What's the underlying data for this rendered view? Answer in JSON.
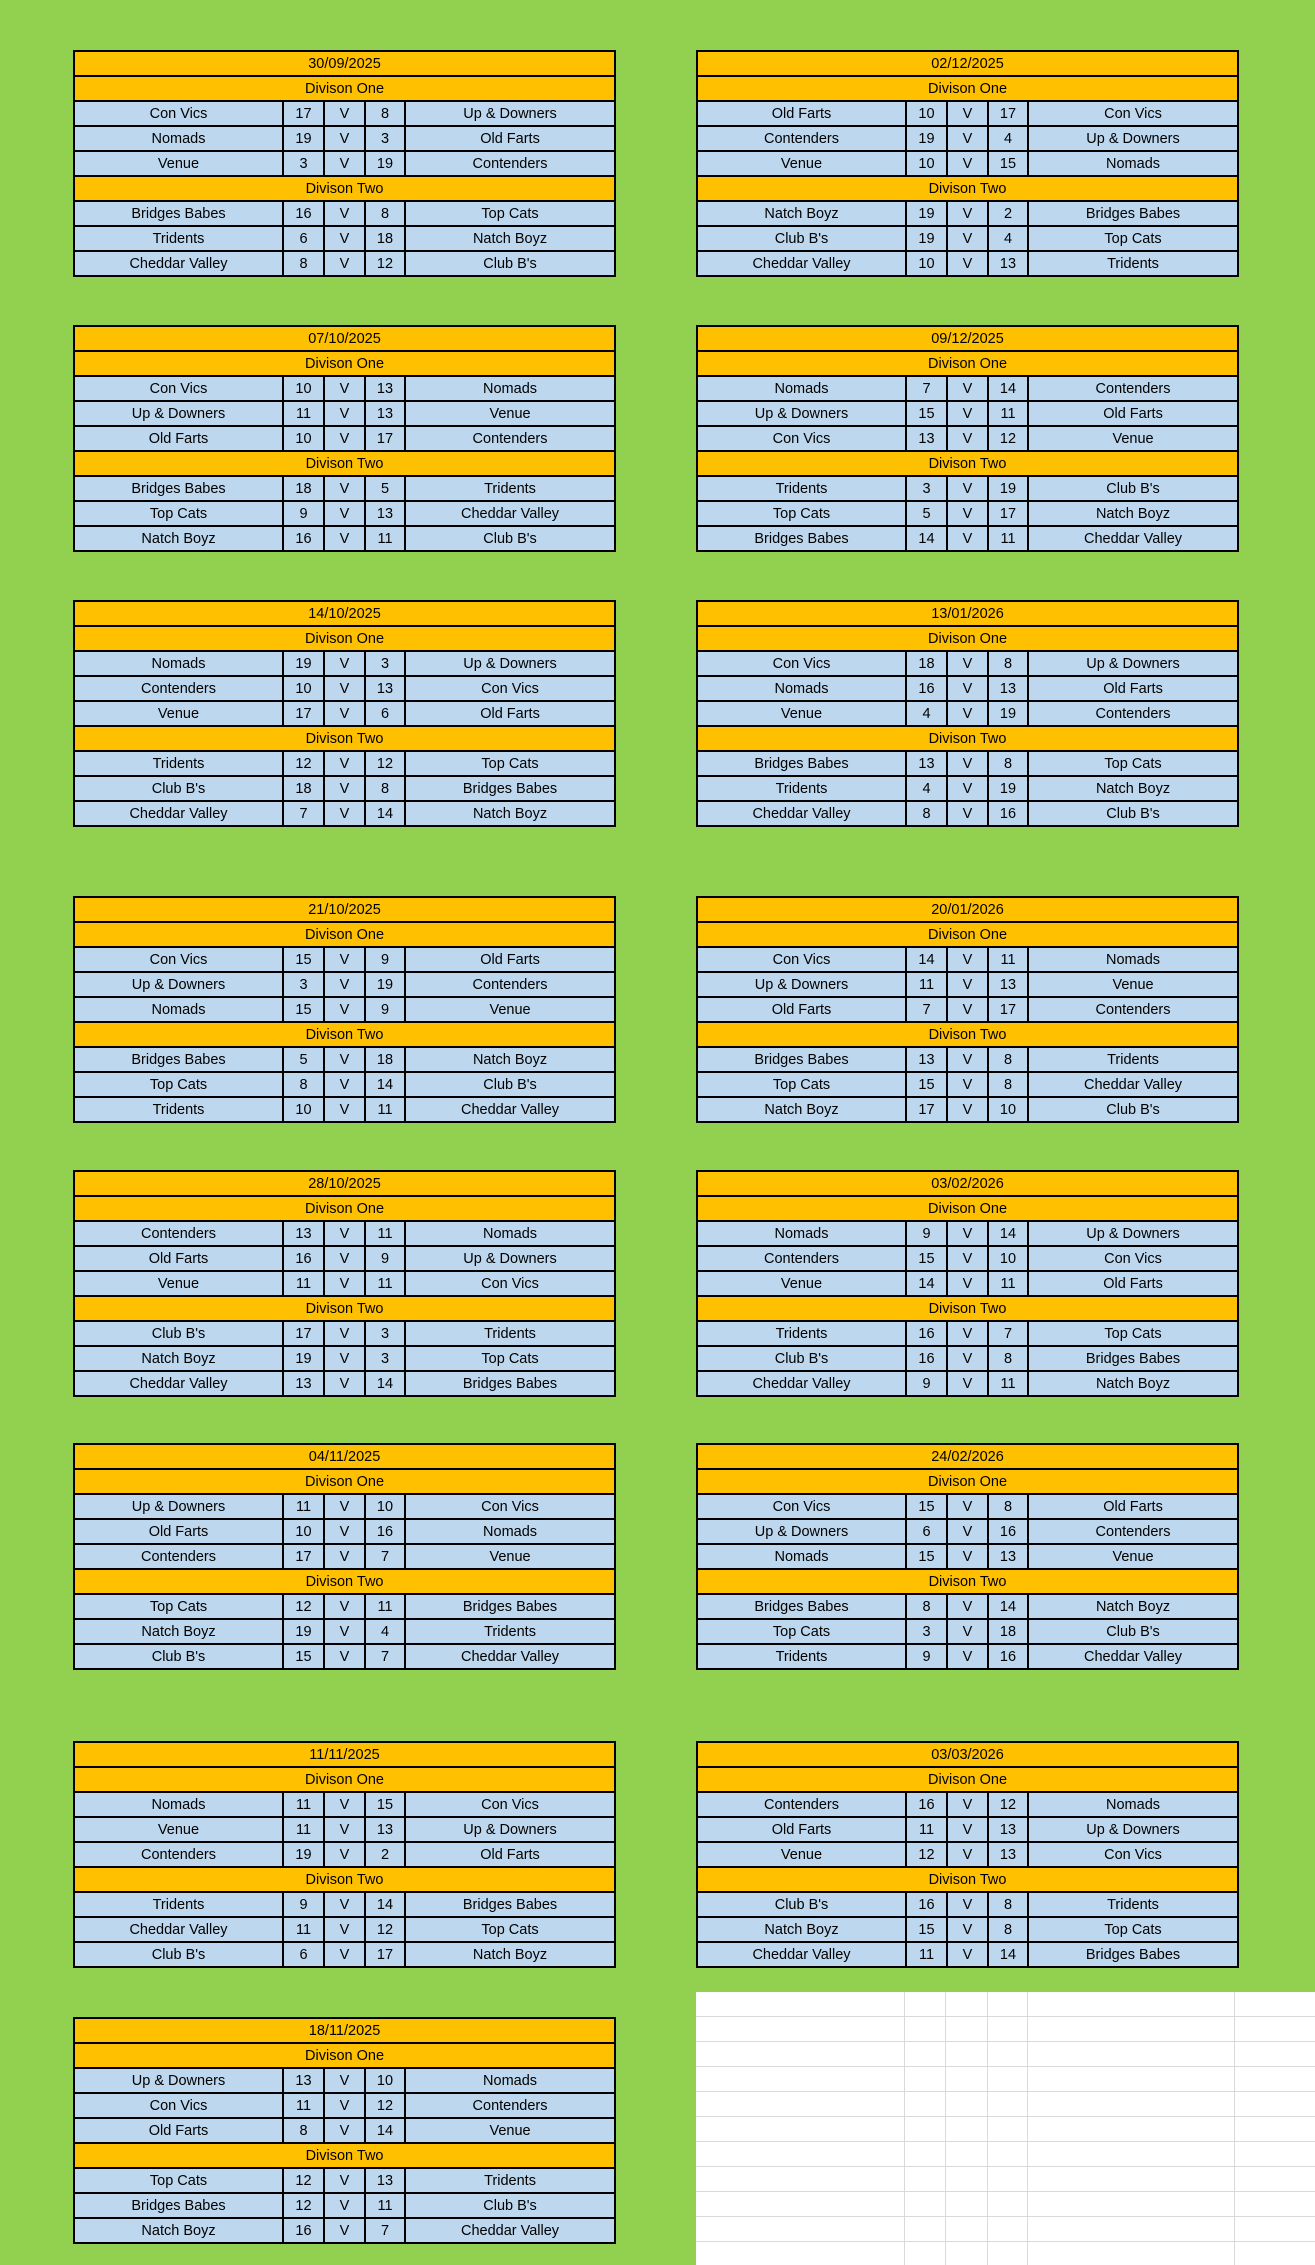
{
  "labels": {
    "division_one": "Divison One",
    "division_two": "Divison Two",
    "vs": "V"
  },
  "colors": {
    "background_green": "#92D050",
    "header_gold": "#FFC000",
    "row_blue": "#BDD7EE",
    "border_black": "#000000",
    "gridline_gray": "#d9d9d9"
  },
  "fixtures": [
    {
      "date": "30/09/2025",
      "division_one": [
        {
          "home": "Con Vics",
          "home_score": "17",
          "away_score": "8",
          "away": "Up & Downers"
        },
        {
          "home": "Nomads",
          "home_score": "19",
          "away_score": "3",
          "away": "Old Farts"
        },
        {
          "home": "Venue",
          "home_score": "3",
          "away_score": "19",
          "away": "Contenders"
        }
      ],
      "division_two": [
        {
          "home": "Bridges Babes",
          "home_score": "16",
          "away_score": "8",
          "away": "Top Cats"
        },
        {
          "home": "Tridents",
          "home_score": "6",
          "away_score": "18",
          "away": "Natch Boyz"
        },
        {
          "home": "Cheddar Valley",
          "home_score": "8",
          "away_score": "12",
          "away": "Club B's"
        }
      ]
    },
    {
      "date": "07/10/2025",
      "division_one": [
        {
          "home": "Con Vics",
          "home_score": "10",
          "away_score": "13",
          "away": "Nomads"
        },
        {
          "home": "Up & Downers",
          "home_score": "11",
          "away_score": "13",
          "away": "Venue"
        },
        {
          "home": "Old Farts",
          "home_score": "10",
          "away_score": "17",
          "away": "Contenders"
        }
      ],
      "division_two": [
        {
          "home": "Bridges Babes",
          "home_score": "18",
          "away_score": "5",
          "away": "Tridents"
        },
        {
          "home": "Top Cats",
          "home_score": "9",
          "away_score": "13",
          "away": "Cheddar Valley"
        },
        {
          "home": "Natch Boyz",
          "home_score": "16",
          "away_score": "11",
          "away": "Club B's"
        }
      ]
    },
    {
      "date": "14/10/2025",
      "division_one": [
        {
          "home": "Nomads",
          "home_score": "19",
          "away_score": "3",
          "away": "Up & Downers"
        },
        {
          "home": "Contenders",
          "home_score": "10",
          "away_score": "13",
          "away": "Con Vics"
        },
        {
          "home": "Venue",
          "home_score": "17",
          "away_score": "6",
          "away": "Old Farts"
        }
      ],
      "division_two": [
        {
          "home": "Tridents",
          "home_score": "12",
          "away_score": "12",
          "away": "Top Cats"
        },
        {
          "home": "Club B's",
          "home_score": "18",
          "away_score": "8",
          "away": "Bridges Babes"
        },
        {
          "home": "Cheddar Valley",
          "home_score": "7",
          "away_score": "14",
          "away": "Natch Boyz"
        }
      ]
    },
    {
      "date": "21/10/2025",
      "division_one": [
        {
          "home": "Con Vics",
          "home_score": "15",
          "away_score": "9",
          "away": "Old Farts"
        },
        {
          "home": "Up & Downers",
          "home_score": "3",
          "away_score": "19",
          "away": "Contenders"
        },
        {
          "home": "Nomads",
          "home_score": "15",
          "away_score": "9",
          "away": "Venue"
        }
      ],
      "division_two": [
        {
          "home": "Bridges Babes",
          "home_score": "5",
          "away_score": "18",
          "away": "Natch Boyz"
        },
        {
          "home": "Top Cats",
          "home_score": "8",
          "away_score": "14",
          "away": "Club B's"
        },
        {
          "home": "Tridents",
          "home_score": "10",
          "away_score": "11",
          "away": "Cheddar Valley"
        }
      ]
    },
    {
      "date": "28/10/2025",
      "division_one": [
        {
          "home": "Contenders",
          "home_score": "13",
          "away_score": "11",
          "away": "Nomads"
        },
        {
          "home": "Old Farts",
          "home_score": "16",
          "away_score": "9",
          "away": "Up & Downers"
        },
        {
          "home": "Venue",
          "home_score": "11",
          "away_score": "11",
          "away": "Con Vics"
        }
      ],
      "division_two": [
        {
          "home": "Club B's",
          "home_score": "17",
          "away_score": "3",
          "away": "Tridents"
        },
        {
          "home": "Natch Boyz",
          "home_score": "19",
          "away_score": "3",
          "away": "Top Cats"
        },
        {
          "home": "Cheddar Valley",
          "home_score": "13",
          "away_score": "14",
          "away": "Bridges Babes"
        }
      ]
    },
    {
      "date": "04/11/2025",
      "division_one": [
        {
          "home": "Up & Downers",
          "home_score": "11",
          "away_score": "10",
          "away": "Con Vics"
        },
        {
          "home": "Old Farts",
          "home_score": "10",
          "away_score": "16",
          "away": "Nomads"
        },
        {
          "home": "Contenders",
          "home_score": "17",
          "away_score": "7",
          "away": "Venue"
        }
      ],
      "division_two": [
        {
          "home": "Top Cats",
          "home_score": "12",
          "away_score": "11",
          "away": "Bridges Babes"
        },
        {
          "home": "Natch Boyz",
          "home_score": "19",
          "away_score": "4",
          "away": "Tridents"
        },
        {
          "home": "Club B's",
          "home_score": "15",
          "away_score": "7",
          "away": "Cheddar Valley"
        }
      ]
    },
    {
      "date": "11/11/2025",
      "division_one": [
        {
          "home": "Nomads",
          "home_score": "11",
          "away_score": "15",
          "away": "Con Vics"
        },
        {
          "home": "Venue",
          "home_score": "11",
          "away_score": "13",
          "away": "Up & Downers"
        },
        {
          "home": "Contenders",
          "home_score": "19",
          "away_score": "2",
          "away": "Old Farts"
        }
      ],
      "division_two": [
        {
          "home": "Tridents",
          "home_score": "9",
          "away_score": "14",
          "away": "Bridges Babes"
        },
        {
          "home": "Cheddar Valley",
          "home_score": "11",
          "away_score": "12",
          "away": "Top Cats"
        },
        {
          "home": "Club B's",
          "home_score": "6",
          "away_score": "17",
          "away": "Natch Boyz"
        }
      ]
    },
    {
      "date": "18/11/2025",
      "division_one": [
        {
          "home": "Up & Downers",
          "home_score": "13",
          "away_score": "10",
          "away": "Nomads"
        },
        {
          "home": "Con Vics",
          "home_score": "11",
          "away_score": "12",
          "away": "Contenders"
        },
        {
          "home": "Old Farts",
          "home_score": "8",
          "away_score": "14",
          "away": "Venue"
        }
      ],
      "division_two": [
        {
          "home": "Top Cats",
          "home_score": "12",
          "away_score": "13",
          "away": "Tridents"
        },
        {
          "home": "Bridges Babes",
          "home_score": "12",
          "away_score": "11",
          "away": "Club B's"
        },
        {
          "home": "Natch Boyz",
          "home_score": "16",
          "away_score": "7",
          "away": "Cheddar Valley"
        }
      ]
    },
    {
      "date": "02/12/2025",
      "division_one": [
        {
          "home": "Old Farts",
          "home_score": "10",
          "away_score": "17",
          "away": "Con Vics"
        },
        {
          "home": "Contenders",
          "home_score": "19",
          "away_score": "4",
          "away": "Up & Downers"
        },
        {
          "home": "Venue",
          "home_score": "10",
          "away_score": "15",
          "away": "Nomads"
        }
      ],
      "division_two": [
        {
          "home": "Natch Boyz",
          "home_score": "19",
          "away_score": "2",
          "away": "Bridges Babes"
        },
        {
          "home": "Club B's",
          "home_score": "19",
          "away_score": "4",
          "away": "Top Cats"
        },
        {
          "home": "Cheddar Valley",
          "home_score": "10",
          "away_score": "13",
          "away": "Tridents"
        }
      ]
    },
    {
      "date": "09/12/2025",
      "division_one": [
        {
          "home": "Nomads",
          "home_score": "7",
          "away_score": "14",
          "away": "Contenders"
        },
        {
          "home": "Up & Downers",
          "home_score": "15",
          "away_score": "11",
          "away": "Old Farts"
        },
        {
          "home": "Con Vics",
          "home_score": "13",
          "away_score": "12",
          "away": "Venue"
        }
      ],
      "division_two": [
        {
          "home": "Tridents",
          "home_score": "3",
          "away_score": "19",
          "away": "Club B's"
        },
        {
          "home": "Top Cats",
          "home_score": "5",
          "away_score": "17",
          "away": "Natch Boyz"
        },
        {
          "home": "Bridges Babes",
          "home_score": "14",
          "away_score": "11",
          "away": "Cheddar Valley"
        }
      ]
    },
    {
      "date": "13/01/2026",
      "division_one": [
        {
          "home": "Con Vics",
          "home_score": "18",
          "away_score": "8",
          "away": "Up & Downers"
        },
        {
          "home": "Nomads",
          "home_score": "16",
          "away_score": "13",
          "away": "Old Farts"
        },
        {
          "home": "Venue",
          "home_score": "4",
          "away_score": "19",
          "away": "Contenders"
        }
      ],
      "division_two": [
        {
          "home": "Bridges Babes",
          "home_score": "13",
          "away_score": "8",
          "away": "Top Cats"
        },
        {
          "home": "Tridents",
          "home_score": "4",
          "away_score": "19",
          "away": "Natch Boyz"
        },
        {
          "home": "Cheddar Valley",
          "home_score": "8",
          "away_score": "16",
          "away": "Club B's"
        }
      ]
    },
    {
      "date": "20/01/2026",
      "division_one": [
        {
          "home": "Con Vics",
          "home_score": "14",
          "away_score": "11",
          "away": "Nomads"
        },
        {
          "home": "Up & Downers",
          "home_score": "11",
          "away_score": "13",
          "away": "Venue"
        },
        {
          "home": "Old Farts",
          "home_score": "7",
          "away_score": "17",
          "away": "Contenders"
        }
      ],
      "division_two": [
        {
          "home": "Bridges Babes",
          "home_score": "13",
          "away_score": "8",
          "away": "Tridents"
        },
        {
          "home": "Top Cats",
          "home_score": "15",
          "away_score": "8",
          "away": "Cheddar Valley"
        },
        {
          "home": "Natch Boyz",
          "home_score": "17",
          "away_score": "10",
          "away": "Club B's"
        }
      ]
    },
    {
      "date": "03/02/2026",
      "division_one": [
        {
          "home": "Nomads",
          "home_score": "9",
          "away_score": "14",
          "away": "Up & Downers"
        },
        {
          "home": "Contenders",
          "home_score": "15",
          "away_score": "10",
          "away": "Con Vics"
        },
        {
          "home": "Venue",
          "home_score": "14",
          "away_score": "11",
          "away": "Old Farts"
        }
      ],
      "division_two": [
        {
          "home": "Tridents",
          "home_score": "16",
          "away_score": "7",
          "away": "Top Cats"
        },
        {
          "home": "Club B's",
          "home_score": "16",
          "away_score": "8",
          "away": "Bridges Babes"
        },
        {
          "home": "Cheddar Valley",
          "home_score": "9",
          "away_score": "11",
          "away": "Natch Boyz"
        }
      ]
    },
    {
      "date": "24/02/2026",
      "division_one": [
        {
          "home": "Con Vics",
          "home_score": "15",
          "away_score": "8",
          "away": "Old Farts"
        },
        {
          "home": "Up & Downers",
          "home_score": "6",
          "away_score": "16",
          "away": "Contenders"
        },
        {
          "home": "Nomads",
          "home_score": "15",
          "away_score": "13",
          "away": "Venue"
        }
      ],
      "division_two": [
        {
          "home": "Bridges Babes",
          "home_score": "8",
          "away_score": "14",
          "away": "Natch Boyz"
        },
        {
          "home": "Top Cats",
          "home_score": "3",
          "away_score": "18",
          "away": "Club B's"
        },
        {
          "home": "Tridents",
          "home_score": "9",
          "away_score": "16",
          "away": "Cheddar Valley"
        }
      ]
    },
    {
      "date": "03/03/2026",
      "division_one": [
        {
          "home": "Contenders",
          "home_score": "16",
          "away_score": "12",
          "away": "Nomads"
        },
        {
          "home": "Old Farts",
          "home_score": "11",
          "away_score": "13",
          "away": "Up & Downers"
        },
        {
          "home": "Venue",
          "home_score": "12",
          "away_score": "13",
          "away": "Con Vics"
        }
      ],
      "division_two": [
        {
          "home": "Club B's",
          "home_score": "16",
          "away_score": "8",
          "away": "Tridents"
        },
        {
          "home": "Natch Boyz",
          "home_score": "15",
          "away_score": "8",
          "away": "Top Cats"
        },
        {
          "home": "Cheddar Valley",
          "home_score": "11",
          "away_score": "14",
          "away": "Bridges Babes"
        }
      ]
    }
  ]
}
